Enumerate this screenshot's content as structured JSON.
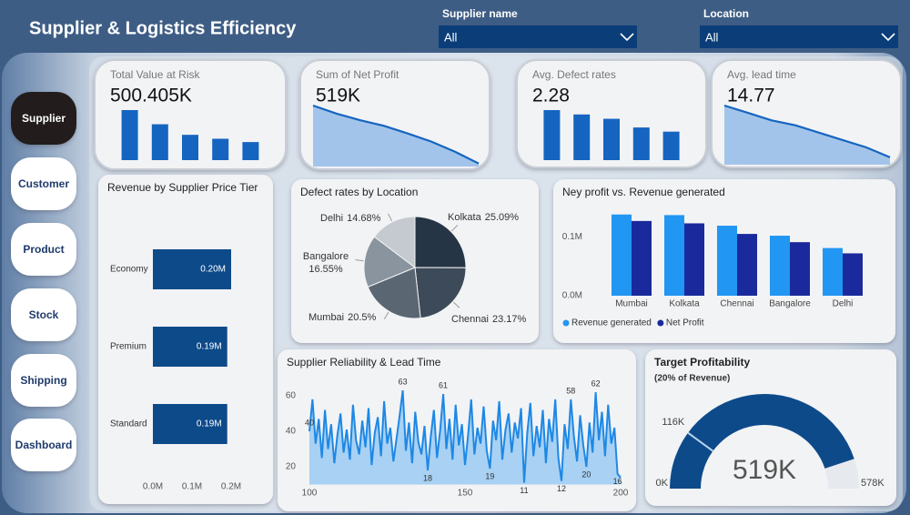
{
  "header": {
    "title": "Supplier & Logistics Efficiency"
  },
  "filters": [
    {
      "label": "Supplier name",
      "value": "All"
    },
    {
      "label": "Location",
      "value": "All"
    }
  ],
  "nav": {
    "items": [
      "Supplier",
      "Customer",
      "Product",
      "Stock",
      "Shipping",
      "Dashboard"
    ],
    "selected": 0
  },
  "chart_data": [
    {
      "type": "bar",
      "title": "Total Value at Risk",
      "kpi": "500.405K",
      "values": [
        166,
        119,
        84,
        71,
        60
      ],
      "color": "#1565c0"
    },
    {
      "type": "area",
      "title": "Sum of Net Profit",
      "kpi": "519K",
      "values": [
        120,
        104,
        91,
        80,
        65,
        49,
        29,
        6
      ],
      "color": "#1565c0"
    },
    {
      "type": "bar",
      "title": "Avg. Defect rates",
      "kpi": "2.28",
      "values": [
        2.88,
        2.63,
        2.38,
        1.88,
        1.64
      ],
      "color": "#1565c0"
    },
    {
      "type": "area",
      "title": "Avg. lead time",
      "kpi": "14.77",
      "values": [
        24,
        21,
        18,
        16,
        13,
        10,
        7,
        3
      ],
      "color": "#1565c0"
    },
    {
      "type": "hbar",
      "title": "Revenue by Supplier Price Tier",
      "categories": [
        "Economy",
        "Premium",
        "Standard"
      ],
      "values": [
        0.2,
        0.19,
        0.19
      ],
      "value_labels": [
        "0.20M",
        "0.19M",
        "0.19M"
      ],
      "color": "#0d4a8a",
      "xlim": [
        0,
        0.2
      ],
      "xticks": [
        {
          "value": 0,
          "label": "0.0M"
        },
        {
          "value": 0.1,
          "label": "0.1M"
        },
        {
          "value": 0.2,
          "label": "0.2M"
        }
      ]
    },
    {
      "type": "pie",
      "title": "Defect rates by Location",
      "categories": [
        "Kolkata",
        "Chennai",
        "Mumbai",
        "Bangalore",
        "Delhi"
      ],
      "values": [
        25.09,
        23.17,
        20.5,
        16.55,
        14.68
      ],
      "value_labels": [
        "25.09%",
        "23.17%",
        "20.5%",
        "16.55%",
        "14.68%"
      ],
      "colors": [
        "#253545",
        "#3d4a59",
        "#5b6673",
        "#8a949e",
        "#c4cacf"
      ]
    },
    {
      "type": "column",
      "title": "Ney profit vs. Revenue generated",
      "categories": [
        "Mumbai",
        "Kolkata",
        "Chennai",
        "Bangalore",
        "Delhi"
      ],
      "series": [
        {
          "name": "Revenue generated",
          "color": "#2196f3",
          "values": [
            0.138,
            0.137,
            0.119,
            0.102,
            0.081
          ]
        },
        {
          "name": "Net Profit",
          "color": "#1a2a9c",
          "values": [
            0.127,
            0.123,
            0.105,
            0.091,
            0.072
          ]
        }
      ],
      "ylim": [
        0,
        0.15
      ],
      "yticks": [
        {
          "value": 0,
          "label": "0.0M"
        },
        {
          "value": 0.1,
          "label": "0.1M"
        }
      ],
      "legend": "bottom-left"
    },
    {
      "type": "line",
      "title": "Supplier Reliability & Lead Time",
      "color": "#1e88e5",
      "x": [
        100,
        101,
        102,
        103,
        104,
        105,
        106,
        107,
        108,
        109,
        110,
        111,
        112,
        113,
        114,
        115,
        116,
        117,
        118,
        119,
        120,
        121,
        122,
        123,
        124,
        125,
        126,
        127,
        128,
        129,
        130,
        131,
        132,
        133,
        134,
        135,
        136,
        137,
        138,
        139,
        140,
        141,
        142,
        143,
        144,
        145,
        146,
        147,
        148,
        149,
        150,
        151,
        152,
        153,
        154,
        155,
        156,
        157,
        158,
        159,
        160,
        161,
        162,
        163,
        164,
        165,
        166,
        167,
        168,
        169,
        170,
        171,
        172,
        173,
        174,
        175,
        176,
        177,
        178,
        179,
        180,
        181,
        182,
        183,
        184,
        185,
        186,
        187,
        188,
        189,
        190,
        191,
        192,
        193,
        194,
        195,
        196,
        197,
        198,
        199,
        200
      ],
      "values": [
        40,
        58,
        33,
        47,
        25,
        52,
        30,
        44,
        22,
        38,
        50,
        28,
        41,
        24,
        55,
        35,
        27,
        46,
        31,
        53,
        21,
        39,
        48,
        26,
        57,
        33,
        42,
        23,
        36,
        49,
        63,
        29,
        45,
        22,
        51,
        34,
        27,
        43,
        18,
        37,
        52,
        25,
        40,
        61,
        30,
        47,
        24,
        55,
        32,
        44,
        21,
        38,
        58,
        27,
        42,
        33,
        54,
        29,
        19,
        46,
        35,
        57,
        24,
        41,
        50,
        28,
        45,
        36,
        53,
        11,
        39,
        56,
        26,
        43,
        31,
        52,
        22,
        47,
        34,
        58,
        25,
        12,
        44,
        30,
        58,
        37,
        23,
        49,
        32,
        20,
        45,
        28,
        62,
        35,
        51,
        26,
        55,
        33,
        42,
        16,
        14
      ],
      "value_labels": [
        "40",
        null,
        null,
        null,
        null,
        null,
        null,
        null,
        null,
        null,
        null,
        null,
        null,
        null,
        null,
        null,
        null,
        null,
        null,
        null,
        null,
        null,
        null,
        null,
        null,
        null,
        null,
        null,
        null,
        null,
        "63",
        null,
        null,
        null,
        null,
        null,
        null,
        null,
        "18",
        null,
        null,
        null,
        null,
        "61",
        null,
        null,
        null,
        null,
        null,
        null,
        null,
        null,
        null,
        null,
        null,
        null,
        null,
        null,
        "19",
        null,
        null,
        null,
        null,
        null,
        null,
        null,
        null,
        null,
        null,
        "11",
        null,
        null,
        null,
        null,
        null,
        null,
        null,
        null,
        null,
        null,
        null,
        "12",
        null,
        null,
        "58",
        null,
        null,
        null,
        null,
        "20",
        null,
        null,
        "62",
        null,
        null,
        null,
        null,
        null,
        null,
        "16",
        null
      ],
      "xlim": [
        100,
        200
      ],
      "xticks": [
        100,
        150,
        200
      ],
      "ylim": [
        10,
        70
      ],
      "yticks": [
        20,
        40,
        60
      ]
    },
    {
      "type": "gauge",
      "title": "Target Profitability",
      "subtitle": "(20% of Revenue)",
      "value": 519,
      "value_label": "519K",
      "target": {
        "value": 116,
        "label": "116K"
      },
      "ylim": [
        0,
        578
      ],
      "yticks": [
        {
          "value": 0,
          "label": "0K"
        },
        {
          "value": 578,
          "label": "578K"
        }
      ],
      "color": "#0d4a8a"
    }
  ]
}
